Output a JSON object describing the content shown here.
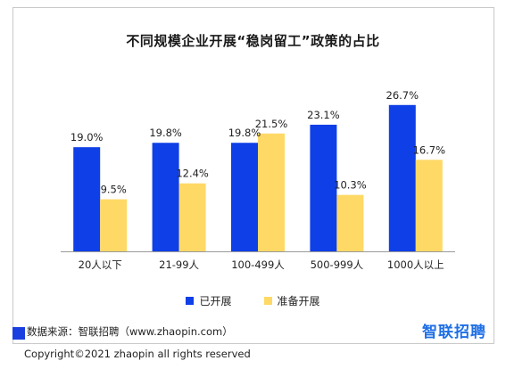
{
  "title": "不同规模企业开展“稳岗留工”政策的占比",
  "legend": {
    "series0": "已开展",
    "series1": "准备开展"
  },
  "colors": {
    "series0": "#0f3fe6",
    "series1": "#ffd966",
    "axis": "#9a9a9a",
    "source_box": "#1a3fe0",
    "brand": "#1f6fe5"
  },
  "source_text": "数据来源：智联招聘（www.zhaopin.com）",
  "brand_text": "智联招聘",
  "copyright_text": "Copyright©2021 zhaopin all rights reserved",
  "chart_data": {
    "type": "bar",
    "title": "不同规模企业开展“稳岗留工”政策的占比",
    "categories": [
      "20人以下",
      "21-99人",
      "100-499人",
      "500-999人",
      "1000人以上"
    ],
    "series": [
      {
        "name": "已开展",
        "values": [
          19.0,
          19.8,
          19.8,
          23.1,
          26.7
        ],
        "labels": [
          "19.0%",
          "19.8%",
          "19.8%",
          "23.1%",
          "26.7%"
        ]
      },
      {
        "name": "准备开展",
        "values": [
          9.5,
          12.4,
          21.5,
          10.3,
          16.7
        ],
        "labels": [
          "9.5%",
          "12.4%",
          "21.5%",
          "10.3%",
          "16.7%"
        ]
      }
    ],
    "ylim": [
      0,
      30
    ],
    "grid": false,
    "legend_position": "bottom"
  }
}
